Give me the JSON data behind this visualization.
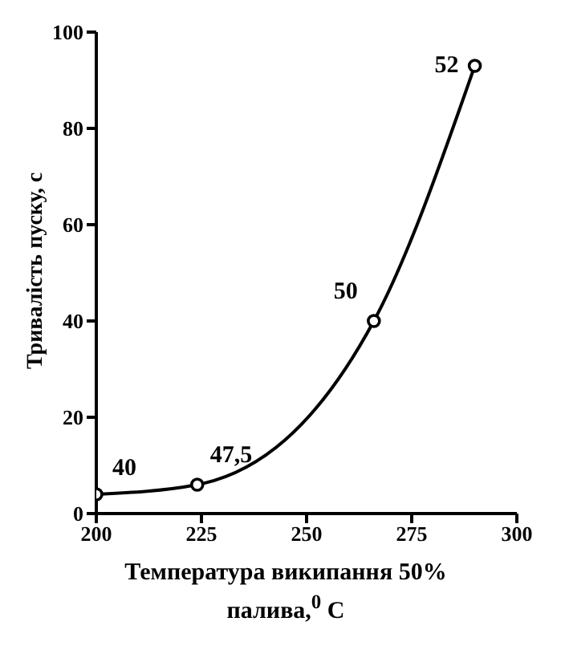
{
  "chart_data": {
    "type": "line",
    "xlabel": "Температура википання 50% палива,$^{0}$ С",
    "ylabel": "Тривалість пуску, с",
    "x": [
      200,
      224,
      266,
      290
    ],
    "series": [
      {
        "color": "#000000",
        "values": [
          4,
          6,
          40,
          93
        ]
      }
    ],
    "xlim": [
      200,
      300
    ],
    "xticks": [
      200,
      225,
      250,
      275,
      300
    ],
    "ylim": [
      0,
      100
    ],
    "yticks": [
      0,
      20,
      40,
      60,
      80,
      100
    ],
    "marker": "circle",
    "line_style": "solid",
    "grid": false,
    "legend": false,
    "annotations": [
      {
        "text": "40",
        "x": 200,
        "y": 4
      },
      {
        "text": "47,5",
        "x": 224,
        "y": 6
      },
      {
        "text": "50",
        "x": 266,
        "y": 40
      },
      {
        "text": "52",
        "x": 290,
        "y": 93
      }
    ]
  }
}
